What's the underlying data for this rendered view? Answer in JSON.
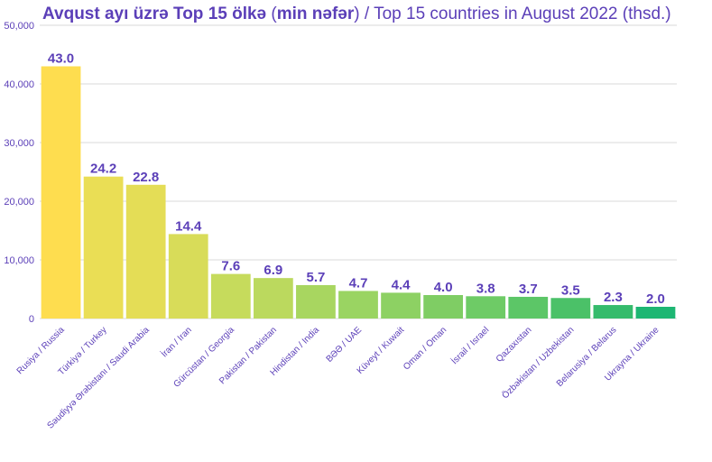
{
  "title": {
    "bold_part_1": "Avqust ayı üzrə Top 15 ölkə",
    "paren_open": " (",
    "bold_part_2": "min nəfər",
    "rest": ") / Top 15 countries in August 2022 (thsd.)"
  },
  "colors": {
    "text": "#5b3fb8",
    "grid": "#d9d9d9",
    "bars": [
      "#fedd4f",
      "#eade55",
      "#e4dd56",
      "#d8dc59",
      "#c6db5c",
      "#bbd95e",
      "#a8d660",
      "#9ad462",
      "#8dd163",
      "#7fcd64",
      "#6ecb66",
      "#5cc667",
      "#4bc168",
      "#35bb6c",
      "#1db673"
    ]
  },
  "chart_data": {
    "type": "bar",
    "title": "Avqust ayı üzrə Top 15 ölkə (min nəfər) / Top 15 countries in August 2022 (thsd.)",
    "categories": [
      "Rusiya / Russia",
      "Türkiyə / Turkey",
      "Səudiyyə Ərəbistanı / Saudi Arabia",
      "İran / Iran",
      "Gürcüstan / Georgia",
      "Pakistan / Pakistan",
      "Hindistan / India",
      "BƏƏ / UAE",
      "Küveyt / Kuwait",
      "Oman / Oman",
      "İsrail / Israel",
      "Qazaxıstan",
      "Özbəkistan / Uzbekistan",
      "Belarusiya / Belarus",
      "Ukrayna / Ukraine"
    ],
    "values": [
      43.0,
      24.2,
      22.8,
      14.4,
      7.6,
      6.9,
      5.7,
      4.7,
      4.4,
      4.0,
      3.8,
      3.7,
      3.5,
      2.3,
      2.0
    ],
    "data_labels": [
      "43.0",
      "24.2",
      "22.8",
      "14.4",
      "7.6",
      "6.9",
      "5.7",
      "4.7",
      "4.4",
      "4.0",
      "3.8",
      "3.7",
      "3.5",
      "2.3",
      "2.0"
    ],
    "yticks": [
      0,
      10000,
      20000,
      30000,
      40000,
      50000
    ],
    "ytick_labels": [
      "0",
      "10,000",
      "20,000",
      "30,000",
      "40,000",
      "50,000"
    ],
    "ylim": [
      0,
      50000
    ],
    "value_scale": 1000,
    "grid": true,
    "legend": "none"
  }
}
